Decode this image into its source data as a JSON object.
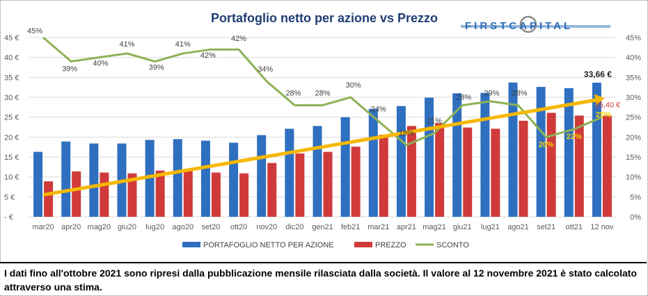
{
  "chart_data": {
    "type": "bar",
    "title": "Portafoglio netto per azione vs Prezzo",
    "categories": [
      "mar20",
      "apr20",
      "mag20",
      "giu20",
      "lug20",
      "ago20",
      "set20",
      "ott20",
      "nov20",
      "dic20",
      "gen21",
      "feb21",
      "mar21",
      "apr21",
      "mag21",
      "giu21",
      "lug21",
      "ago21",
      "set21",
      "ott21",
      "12 nov"
    ],
    "left_axis": {
      "ticks": [
        "- €",
        "5 €",
        "10 €",
        "15 €",
        "20 €",
        "25 €",
        "30 €",
        "35 €",
        "40 €",
        "45 €"
      ],
      "ylim": [
        0,
        45
      ]
    },
    "right_axis": {
      "ticks": [
        "0%",
        "5%",
        "10%",
        "15%",
        "20%",
        "25%",
        "30%",
        "35%",
        "40%",
        "45%"
      ],
      "ylim": [
        0,
        45
      ]
    },
    "series": [
      {
        "name": "PORTAFOGLIO NETTO PER AZIONE",
        "kind": "bar",
        "color": "#2f6fbf",
        "values": [
          16.3,
          18.9,
          18.4,
          18.4,
          19.3,
          19.5,
          19.1,
          18.6,
          20.5,
          22.1,
          22.8,
          25.0,
          27.1,
          27.8,
          29.9,
          31.0,
          31.1,
          33.7,
          32.6,
          32.3,
          33.66
        ]
      },
      {
        "name": "PREZZO",
        "kind": "bar",
        "color": "#d03a3a",
        "values": [
          8.9,
          11.4,
          11.1,
          10.9,
          11.6,
          11.5,
          11.1,
          10.9,
          13.5,
          15.9,
          16.3,
          17.6,
          20.6,
          22.8,
          23.5,
          22.4,
          22.1,
          24.1,
          26.1,
          25.4,
          25.4
        ]
      },
      {
        "name": "SCONTO",
        "kind": "line",
        "color": "#8db255",
        "values": [
          45,
          39,
          40,
          41,
          39,
          41,
          42,
          42,
          34,
          28,
          28,
          30,
          24,
          18,
          21,
          28,
          29,
          28,
          20,
          22,
          25
        ]
      }
    ],
    "sconto_labels": [
      "45%",
      "39%",
      "40%",
      "41%",
      "39%",
      "41%",
      "42%",
      "42%",
      "34%",
      "28%",
      "28%",
      "30%",
      "24%",
      "18%",
      "21%",
      "28%",
      "29%",
      "28%",
      "20%",
      "22%",
      "25%"
    ],
    "trend_arrow": {
      "color": "#f5b800",
      "from": 5.5,
      "to": 29.8
    },
    "value_annotations": {
      "last_nav": "33,66 €",
      "last_price": "25,40 €"
    },
    "legend_placement": "bottom",
    "grid": true
  },
  "logo": {
    "text": "FIRSTCAPITAL",
    "color": "#2e6db5"
  },
  "footnote": "I dati fino all'ottobre 2021 sono ripresi dalla pubblicazione mensile rilasciata dalla società. Il valore al 12 novembre 2021 è stato calcolato attraverso una stima."
}
